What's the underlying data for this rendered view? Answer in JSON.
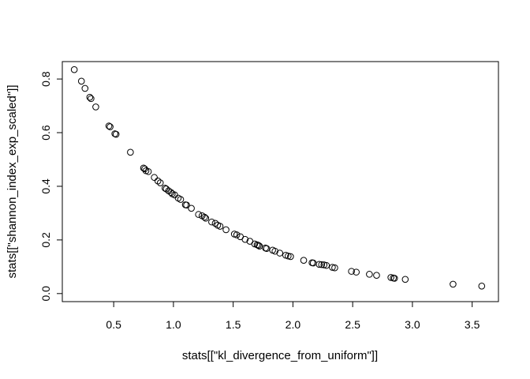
{
  "chart_data": {
    "type": "scatter",
    "title": "",
    "xlabel": "stats[[\"kl_divergence_from_uniform\"]]",
    "ylabel": "stats[[\"shannon_index_exp_scaled\"]]",
    "xlim": [
      0.07,
      3.72
    ],
    "ylim": [
      -0.03,
      0.865
    ],
    "x_ticks": [
      0.5,
      1.0,
      1.5,
      2.0,
      2.5,
      3.0,
      3.5
    ],
    "x_tick_labels": [
      "0.5",
      "1.0",
      "1.5",
      "2.0",
      "2.5",
      "3.0",
      "3.5"
    ],
    "y_ticks": [
      0.0,
      0.2,
      0.4,
      0.6,
      0.8
    ],
    "y_tick_labels": [
      "0.0",
      "0.2",
      "0.4",
      "0.6",
      "0.8"
    ],
    "grid": false,
    "marker": "open-circle",
    "series": [
      {
        "points": [
          [
            0.17,
            0.835
          ],
          [
            0.23,
            0.792
          ],
          [
            0.26,
            0.765
          ],
          [
            0.3,
            0.732
          ],
          [
            0.31,
            0.727
          ],
          [
            0.35,
            0.696
          ],
          [
            0.46,
            0.625
          ],
          [
            0.47,
            0.622
          ],
          [
            0.51,
            0.596
          ],
          [
            0.52,
            0.594
          ],
          [
            0.64,
            0.527
          ],
          [
            0.75,
            0.468
          ],
          [
            0.76,
            0.465
          ],
          [
            0.77,
            0.458
          ],
          [
            0.79,
            0.455
          ],
          [
            0.84,
            0.433
          ],
          [
            0.87,
            0.42
          ],
          [
            0.89,
            0.413
          ],
          [
            0.93,
            0.393
          ],
          [
            0.94,
            0.39
          ],
          [
            0.96,
            0.383
          ],
          [
            0.98,
            0.377
          ],
          [
            0.99,
            0.372
          ],
          [
            1.01,
            0.368
          ],
          [
            1.04,
            0.356
          ],
          [
            1.06,
            0.351
          ],
          [
            1.1,
            0.331
          ],
          [
            1.11,
            0.33
          ],
          [
            1.15,
            0.318
          ],
          [
            1.21,
            0.295
          ],
          [
            1.24,
            0.29
          ],
          [
            1.26,
            0.285
          ],
          [
            1.27,
            0.281
          ],
          [
            1.32,
            0.267
          ],
          [
            1.35,
            0.262
          ],
          [
            1.37,
            0.255
          ],
          [
            1.39,
            0.251
          ],
          [
            1.44,
            0.238
          ],
          [
            1.51,
            0.222
          ],
          [
            1.53,
            0.219
          ],
          [
            1.56,
            0.212
          ],
          [
            1.6,
            0.202
          ],
          [
            1.64,
            0.195
          ],
          [
            1.68,
            0.185
          ],
          [
            1.7,
            0.182
          ],
          [
            1.71,
            0.18
          ],
          [
            1.72,
            0.177
          ],
          [
            1.77,
            0.17
          ],
          [
            1.78,
            0.168
          ],
          [
            1.83,
            0.162
          ],
          [
            1.85,
            0.158
          ],
          [
            1.89,
            0.151
          ],
          [
            1.94,
            0.143
          ],
          [
            1.96,
            0.14
          ],
          [
            1.98,
            0.138
          ],
          [
            2.09,
            0.124
          ],
          [
            2.16,
            0.115
          ],
          [
            2.17,
            0.114
          ],
          [
            2.22,
            0.109
          ],
          [
            2.24,
            0.108
          ],
          [
            2.26,
            0.107
          ],
          [
            2.28,
            0.105
          ],
          [
            2.33,
            0.098
          ],
          [
            2.35,
            0.096
          ],
          [
            2.49,
            0.083
          ],
          [
            2.53,
            0.08
          ],
          [
            2.64,
            0.072
          ],
          [
            2.7,
            0.068
          ],
          [
            2.82,
            0.06
          ],
          [
            2.84,
            0.058
          ],
          [
            2.85,
            0.057
          ],
          [
            2.94,
            0.053
          ],
          [
            3.34,
            0.035
          ],
          [
            3.58,
            0.028
          ]
        ]
      }
    ]
  }
}
